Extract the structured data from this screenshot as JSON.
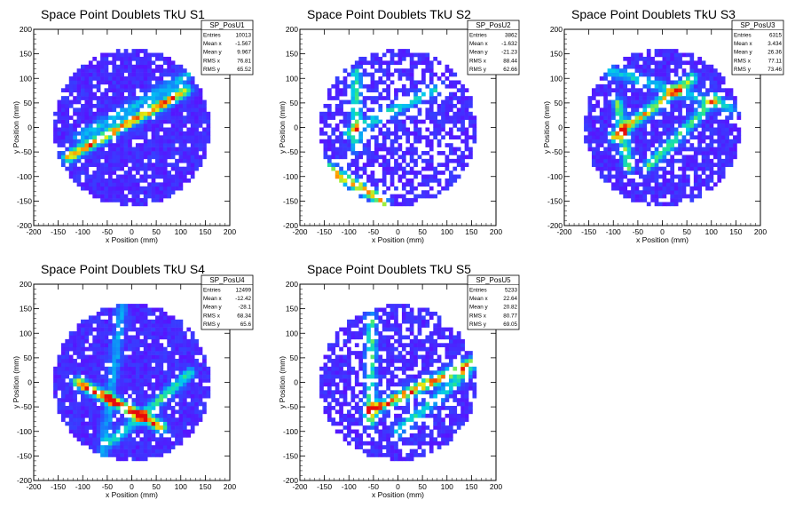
{
  "chart_data": [
    {
      "type": "heatmap",
      "title": "Space Point Doublets TkU S1",
      "xlabel": "x Position (mm)",
      "ylabel": "y Position (mm)",
      "xlim": [
        -200,
        200
      ],
      "ylim": [
        -200,
        200
      ],
      "xticks": [
        -200,
        -150,
        -100,
        -50,
        0,
        50,
        100,
        150,
        200
      ],
      "yticks": [
        -200,
        -150,
        -100,
        -50,
        0,
        50,
        100,
        150,
        200
      ],
      "stats": {
        "name": "SP_PosU1",
        "rows": [
          {
            "label": "Entries",
            "value": "10013"
          },
          {
            "label": "Mean x",
            "value": "-1.567"
          },
          {
            "label": "Mean y",
            "value": "9.967"
          },
          {
            "label": "RMS x",
            "value": "76.81"
          },
          {
            "label": "RMS y",
            "value": "65.52"
          }
        ]
      },
      "disk_radius": 160,
      "empty_fraction": 0.12,
      "bright_lines": [
        {
          "from": [
            -130,
            -60
          ],
          "to": [
            110,
            75
          ],
          "intensity": 0.9
        },
        {
          "from": [
            -110,
            -20
          ],
          "to": [
            120,
            110
          ],
          "intensity": 0.35
        }
      ]
    },
    {
      "type": "heatmap",
      "title": "Space Point Doublets TkU S2",
      "xlabel": "x Position (mm)",
      "ylabel": "y Position (mm)",
      "xlim": [
        -200,
        200
      ],
      "ylim": [
        -200,
        200
      ],
      "xticks": [
        -200,
        -150,
        -100,
        -50,
        0,
        50,
        100,
        150,
        200
      ],
      "yticks": [
        -200,
        -150,
        -100,
        -50,
        0,
        50,
        100,
        150,
        200
      ],
      "stats": {
        "name": "SP_PosU2",
        "rows": [
          {
            "label": "Entries",
            "value": "3862"
          },
          {
            "label": "Mean x",
            "value": "-1.632"
          },
          {
            "label": "Mean y",
            "value": "-21.23"
          },
          {
            "label": "RMS x",
            "value": "88.44"
          },
          {
            "label": "RMS y",
            "value": "62.66"
          }
        ]
      },
      "disk_radius": 160,
      "empty_fraction": 0.38,
      "bright_lines": [
        {
          "from": [
            -150,
            -80
          ],
          "to": [
            -30,
            -150
          ],
          "intensity": 0.85
        },
        {
          "from": [
            -85,
            110
          ],
          "to": [
            -85,
            -40
          ],
          "intensity": 0.55
        },
        {
          "from": [
            -100,
            -10
          ],
          "to": [
            80,
            80
          ],
          "intensity": 0.45
        }
      ]
    },
    {
      "type": "heatmap",
      "title": "Space Point Doublets TkU S3",
      "xlabel": "x Position (mm)",
      "ylabel": "y Position (mm)",
      "xlim": [
        -200,
        200
      ],
      "ylim": [
        -200,
        200
      ],
      "xticks": [
        -200,
        -150,
        -100,
        -50,
        0,
        50,
        100,
        150,
        200
      ],
      "yticks": [
        -200,
        -150,
        -100,
        -50,
        0,
        50,
        100,
        150,
        200
      ],
      "stats": {
        "name": "SP_PosU3",
        "rows": [
          {
            "label": "Entries",
            "value": "6315"
          },
          {
            "label": "Mean x",
            "value": "3.434"
          },
          {
            "label": "Mean y",
            "value": "26.36"
          },
          {
            "label": "RMS x",
            "value": "77.11"
          },
          {
            "label": "RMS y",
            "value": "73.46"
          }
        ]
      },
      "disk_radius": 160,
      "empty_fraction": 0.2,
      "bright_lines": [
        {
          "from": [
            -100,
            -20
          ],
          "to": [
            60,
            100
          ],
          "intensity": 0.75
        },
        {
          "from": [
            -90,
            50
          ],
          "to": [
            -70,
            -80
          ],
          "intensity": 0.6
        },
        {
          "from": [
            -30,
            -80
          ],
          "to": [
            110,
            60
          ],
          "intensity": 0.55
        },
        {
          "from": [
            -120,
            120
          ],
          "to": [
            140,
            40
          ],
          "intensity": 0.4
        }
      ]
    },
    {
      "type": "heatmap",
      "title": "Space Point Doublets TkU S4",
      "xlabel": "x Position (mm)",
      "ylabel": "y Position (mm)",
      "xlim": [
        -200,
        200
      ],
      "ylim": [
        -200,
        200
      ],
      "xticks": [
        -200,
        -150,
        -100,
        -50,
        0,
        50,
        100,
        150,
        200
      ],
      "yticks": [
        -200,
        -150,
        -100,
        -50,
        0,
        50,
        100,
        150,
        200
      ],
      "stats": {
        "name": "SP_PosU4",
        "rows": [
          {
            "label": "Entries",
            "value": "12499"
          },
          {
            "label": "Mean x",
            "value": "-12.42"
          },
          {
            "label": "Mean y",
            "value": "-28.1"
          },
          {
            "label": "RMS x",
            "value": "68.34"
          },
          {
            "label": "RMS y",
            "value": "65.6"
          }
        ]
      },
      "disk_radius": 160,
      "empty_fraction": 0.1,
      "bright_lines": [
        {
          "from": [
            -110,
            0
          ],
          "to": [
            60,
            -90
          ],
          "intensity": 0.95
        },
        {
          "from": [
            -40,
            -120
          ],
          "to": [
            120,
            20
          ],
          "intensity": 0.5
        },
        {
          "from": [
            -20,
            150
          ],
          "to": [
            -60,
            -150
          ],
          "intensity": 0.3
        }
      ]
    },
    {
      "type": "heatmap",
      "title": "Space Point Doublets TkU S5",
      "xlabel": "x Position (mm)",
      "ylabel": "y Position (mm)",
      "xlim": [
        -200,
        200
      ],
      "ylim": [
        -200,
        200
      ],
      "xticks": [
        -200,
        -150,
        -100,
        -50,
        0,
        50,
        100,
        150,
        200
      ],
      "yticks": [
        -200,
        -150,
        -100,
        -50,
        0,
        50,
        100,
        150,
        200
      ],
      "stats": {
        "name": "SP_PosU5",
        "rows": [
          {
            "label": "Entries",
            "value": "5233"
          },
          {
            "label": "Mean x",
            "value": "22.64"
          },
          {
            "label": "Mean y",
            "value": "20.82"
          },
          {
            "label": "RMS x",
            "value": "80.77"
          },
          {
            "label": "RMS y",
            "value": "69.05"
          }
        ]
      },
      "disk_radius": 160,
      "empty_fraction": 0.3,
      "bright_lines": [
        {
          "from": [
            -60,
            -60
          ],
          "to": [
            150,
            40
          ],
          "intensity": 0.9
        },
        {
          "from": [
            -55,
            130
          ],
          "to": [
            -55,
            -80
          ],
          "intensity": 0.55
        },
        {
          "from": [
            0,
            -100
          ],
          "to": [
            140,
            20
          ],
          "intensity": 0.45
        }
      ]
    }
  ]
}
